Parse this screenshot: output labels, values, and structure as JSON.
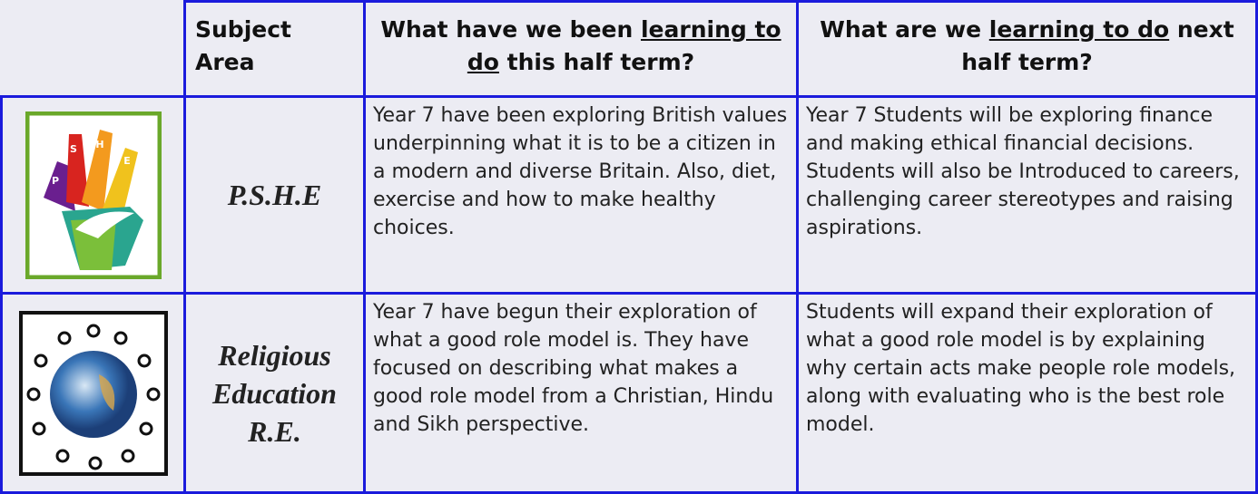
{
  "table": {
    "header": {
      "subject": "Subject Area",
      "this_term": [
        "What have we been ",
        "learning to do",
        " this half term?"
      ],
      "next_term": [
        "What are we ",
        "learning to do",
        " next half term?"
      ]
    },
    "rows": [
      {
        "icon_letters": [
          "P",
          "S",
          "H",
          "E"
        ],
        "subject": "P.S.H.E",
        "this_term": "Year 7 have been exploring British values underpinning what it is to be a citizen in a modern and diverse Britain. Also, diet, exercise and how to make healthy choices.",
        "next_term": "Year 7 Students will be exploring finance and making ethical financial decisions. Students will also be Introduced to careers, challenging career stereotypes and raising aspirations."
      },
      {
        "subject": "Religious Education R.E.",
        "this_term": "Year 7 have begun their exploration of what a good role model is. They have focused on describing what makes a good role model from a Christian, Hindu and Sikh perspective.",
        "next_term": "Students will expand their exploration of what a good role model is by explaining why certain acts make people role models, along with evaluating who is the best role model."
      }
    ]
  }
}
